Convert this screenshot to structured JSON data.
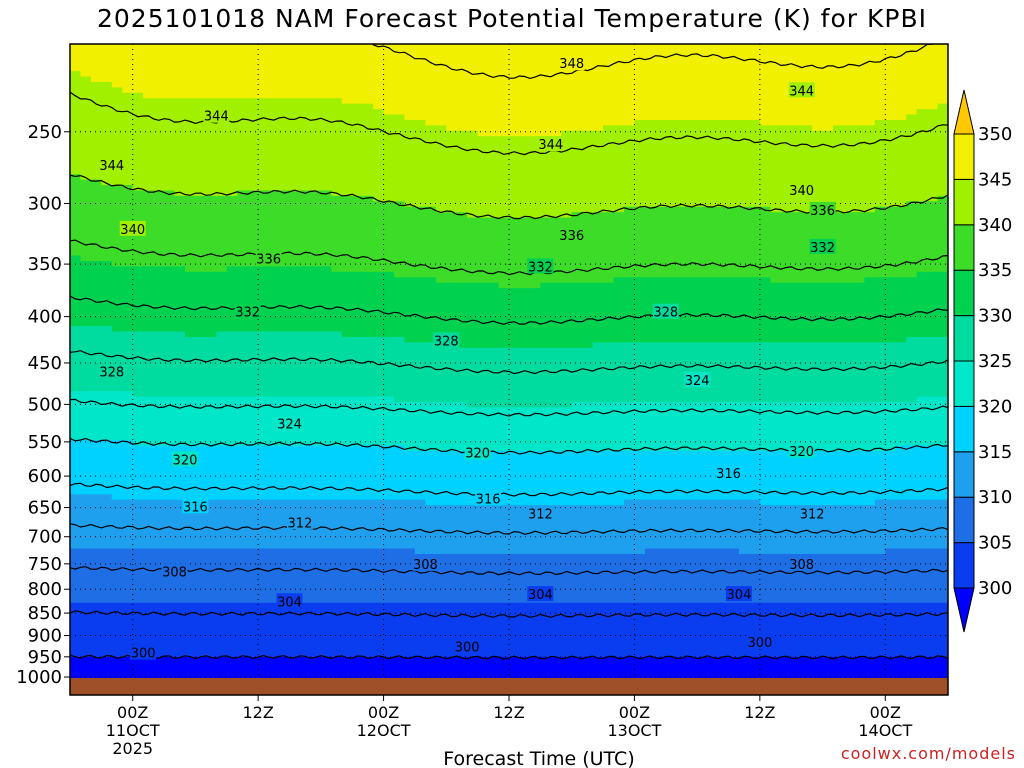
{
  "title": "2025101018 NAM Forecast Potential Temperature (K) for KPBI",
  "watermark": "coolwx.com/models",
  "chart_data": {
    "type": "heatmap",
    "title": "2025101018 NAM Forecast Potential Temperature (K) for KPBI",
    "xlabel": "Forecast Time (UTC)",
    "ylabel": "",
    "y_scale": "log-pressure",
    "ylim": [
      1000,
      200
    ],
    "grid": true,
    "y_ticks": [
      250,
      300,
      350,
      400,
      450,
      500,
      550,
      600,
      650,
      700,
      750,
      800,
      850,
      900,
      950,
      1000
    ],
    "x_ticks": [
      {
        "hour": 6,
        "lines": [
          "00Z",
          "11OCT",
          "2025"
        ]
      },
      {
        "hour": 18,
        "lines": [
          "12Z"
        ]
      },
      {
        "hour": 30,
        "lines": [
          "00Z",
          "12OCT"
        ]
      },
      {
        "hour": 42,
        "lines": [
          "12Z"
        ]
      },
      {
        "hour": 54,
        "lines": [
          "00Z",
          "13OCT"
        ]
      },
      {
        "hour": 66,
        "lines": [
          "12Z"
        ]
      },
      {
        "hour": 78,
        "lines": [
          "00Z",
          "14OCT"
        ]
      }
    ],
    "x_range_hours": [
      0,
      84
    ],
    "colorbar": {
      "levels": [
        300,
        305,
        310,
        315,
        320,
        325,
        330,
        335,
        340,
        345,
        350
      ],
      "colors": [
        "#0000ff",
        "#0a3cf0",
        "#1e6ee6",
        "#1fa0ee",
        "#00d2ff",
        "#00e6c8",
        "#00dca0",
        "#00d250",
        "#3cdc28",
        "#a0f000",
        "#f0f000",
        "#ffc800"
      ],
      "extend": "both",
      "label_levels": [
        "300",
        "305",
        "310",
        "315",
        "320",
        "325",
        "330",
        "335",
        "340",
        "345",
        "350"
      ]
    },
    "contour_levels": [
      300,
      304,
      308,
      312,
      316,
      320,
      324,
      328,
      332,
      336,
      340,
      344,
      348
    ],
    "profile_hour0": [
      {
        "p": 1000,
        "theta": 298
      },
      {
        "p": 950,
        "theta": 300
      },
      {
        "p": 900,
        "theta": 302
      },
      {
        "p": 850,
        "theta": 304
      },
      {
        "p": 800,
        "theta": 306
      },
      {
        "p": 750,
        "theta": 308.5
      },
      {
        "p": 700,
        "theta": 311
      },
      {
        "p": 650,
        "theta": 314
      },
      {
        "p": 600,
        "theta": 317
      },
      {
        "p": 550,
        "theta": 320
      },
      {
        "p": 500,
        "theta": 324
      },
      {
        "p": 450,
        "theta": 327.5
      },
      {
        "p": 400,
        "theta": 331
      },
      {
        "p": 350,
        "theta": 335
      },
      {
        "p": 300,
        "theta": 339
      },
      {
        "p": 250,
        "theta": 343
      },
      {
        "p": 200,
        "theta": 347
      }
    ],
    "contour_labels": [
      {
        "value": "348",
        "hour": 48,
        "p": 210
      },
      {
        "value": "344",
        "hour": 14,
        "p": 240
      },
      {
        "value": "344",
        "hour": 4,
        "p": 272
      },
      {
        "value": "344",
        "hour": 46,
        "p": 258
      },
      {
        "value": "344",
        "hour": 70,
        "p": 225
      },
      {
        "value": "340",
        "hour": 6,
        "p": 320
      },
      {
        "value": "340",
        "hour": 70,
        "p": 290
      },
      {
        "value": "336",
        "hour": 19,
        "p": 345
      },
      {
        "value": "336",
        "hour": 48,
        "p": 325
      },
      {
        "value": "336",
        "hour": 72,
        "p": 305
      },
      {
        "value": "332",
        "hour": 17,
        "p": 395
      },
      {
        "value": "332",
        "hour": 45,
        "p": 352
      },
      {
        "value": "332",
        "hour": 72,
        "p": 335
      },
      {
        "value": "328",
        "hour": 4,
        "p": 460
      },
      {
        "value": "328",
        "hour": 36,
        "p": 425
      },
      {
        "value": "328",
        "hour": 57,
        "p": 395
      },
      {
        "value": "324",
        "hour": 21,
        "p": 525
      },
      {
        "value": "324",
        "hour": 60,
        "p": 470
      },
      {
        "value": "320",
        "hour": 11,
        "p": 575
      },
      {
        "value": "320",
        "hour": 39,
        "p": 565
      },
      {
        "value": "320",
        "hour": 70,
        "p": 563
      },
      {
        "value": "316",
        "hour": 12,
        "p": 648
      },
      {
        "value": "316",
        "hour": 40,
        "p": 635
      },
      {
        "value": "316",
        "hour": 63,
        "p": 595
      },
      {
        "value": "312",
        "hour": 22,
        "p": 675
      },
      {
        "value": "312",
        "hour": 45,
        "p": 660
      },
      {
        "value": "312",
        "hour": 71,
        "p": 660
      },
      {
        "value": "308",
        "hour": 10,
        "p": 765
      },
      {
        "value": "308",
        "hour": 34,
        "p": 750
      },
      {
        "value": "308",
        "hour": 70,
        "p": 750
      },
      {
        "value": "304",
        "hour": 21,
        "p": 825
      },
      {
        "value": "304",
        "hour": 45,
        "p": 810
      },
      {
        "value": "304",
        "hour": 64,
        "p": 810
      },
      {
        "value": "300",
        "hour": 7,
        "p": 940
      },
      {
        "value": "300",
        "hour": 38,
        "p": 925
      },
      {
        "value": "300",
        "hour": 66,
        "p": 915
      }
    ]
  }
}
